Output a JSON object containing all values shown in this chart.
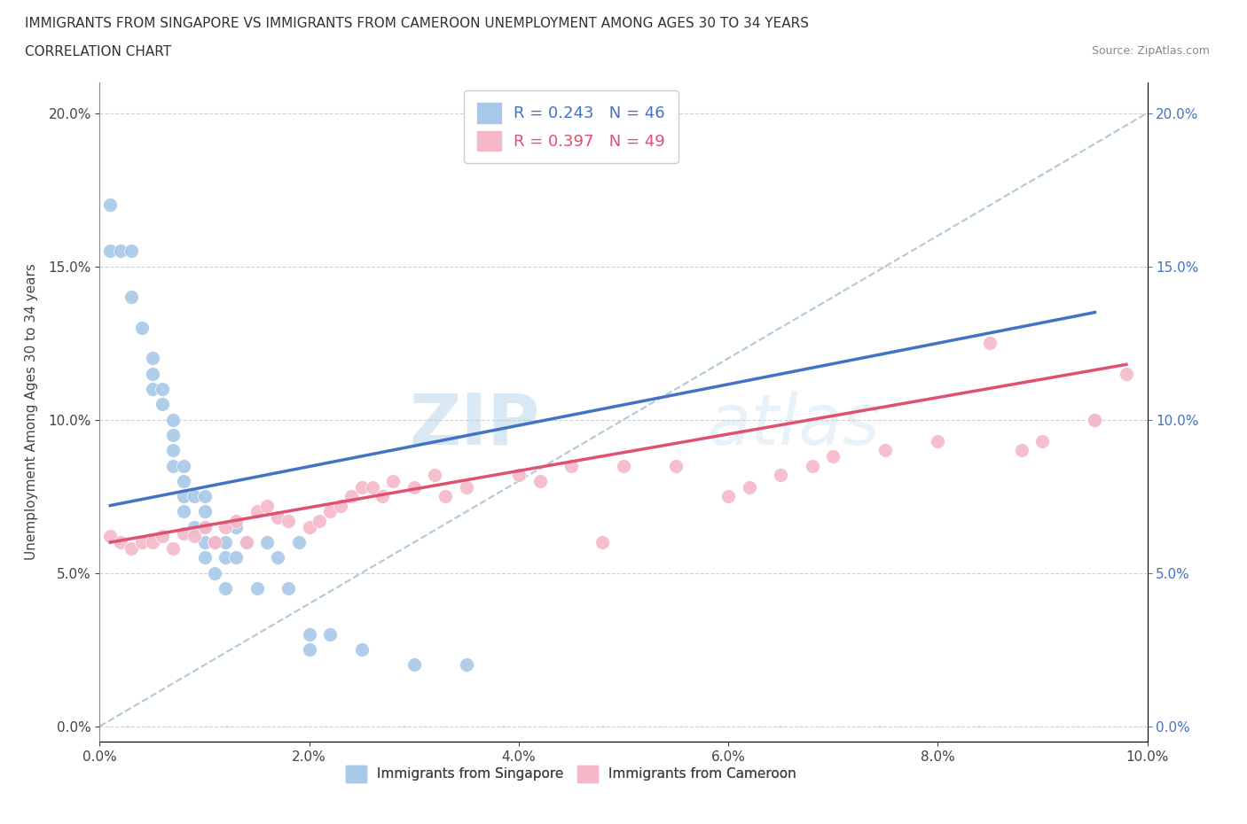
{
  "title_line1": "IMMIGRANTS FROM SINGAPORE VS IMMIGRANTS FROM CAMEROON UNEMPLOYMENT AMONG AGES 30 TO 34 YEARS",
  "title_line2": "CORRELATION CHART",
  "source": "Source: ZipAtlas.com",
  "ylabel": "Unemployment Among Ages 30 to 34 years",
  "watermark": "ZIPatlas",
  "xlim": [
    0.0,
    0.1
  ],
  "ylim": [
    -0.005,
    0.21
  ],
  "x_ticks": [
    0.0,
    0.02,
    0.04,
    0.06,
    0.08,
    0.1
  ],
  "y_ticks": [
    0.0,
    0.05,
    0.1,
    0.15,
    0.2
  ],
  "legend_singapore": "R = 0.243   N = 46",
  "legend_cameroon": "R = 0.397   N = 49",
  "legend_label_singapore": "Immigrants from Singapore",
  "legend_label_cameroon": "Immigrants from Cameroon",
  "color_singapore": "#a8c8e8",
  "color_cameroon": "#f5b8c8",
  "color_singapore_line": "#4472c4",
  "color_cameroon_line": "#e05070",
  "bg_color": "#ffffff",
  "grid_color": "#cccccc",
  "singapore_x": [
    0.001,
    0.001,
    0.002,
    0.003,
    0.003,
    0.004,
    0.005,
    0.005,
    0.005,
    0.006,
    0.006,
    0.007,
    0.007,
    0.007,
    0.007,
    0.008,
    0.008,
    0.008,
    0.008,
    0.009,
    0.009,
    0.01,
    0.01,
    0.01,
    0.01,
    0.01,
    0.011,
    0.011,
    0.012,
    0.012,
    0.012,
    0.013,
    0.013,
    0.014,
    0.015,
    0.016,
    0.017,
    0.018,
    0.019,
    0.02,
    0.02,
    0.022,
    0.025,
    0.03,
    0.035,
    0.095
  ],
  "singapore_y": [
    0.17,
    0.155,
    0.155,
    0.155,
    0.14,
    0.13,
    0.12,
    0.115,
    0.11,
    0.11,
    0.105,
    0.1,
    0.095,
    0.09,
    0.085,
    0.085,
    0.08,
    0.075,
    0.07,
    0.075,
    0.065,
    0.075,
    0.07,
    0.065,
    0.06,
    0.055,
    0.06,
    0.05,
    0.06,
    0.055,
    0.045,
    0.065,
    0.055,
    0.06,
    0.045,
    0.06,
    0.055,
    0.045,
    0.06,
    0.03,
    0.025,
    0.03,
    0.025,
    0.02,
    0.02,
    0.1
  ],
  "cameroon_x": [
    0.001,
    0.002,
    0.003,
    0.004,
    0.005,
    0.006,
    0.007,
    0.008,
    0.009,
    0.01,
    0.011,
    0.012,
    0.013,
    0.014,
    0.015,
    0.016,
    0.017,
    0.018,
    0.02,
    0.021,
    0.022,
    0.023,
    0.024,
    0.025,
    0.026,
    0.027,
    0.028,
    0.03,
    0.032,
    0.033,
    0.035,
    0.04,
    0.042,
    0.045,
    0.048,
    0.05,
    0.055,
    0.06,
    0.062,
    0.065,
    0.068,
    0.07,
    0.075,
    0.08,
    0.085,
    0.088,
    0.09,
    0.095,
    0.098
  ],
  "cameroon_y": [
    0.062,
    0.06,
    0.058,
    0.06,
    0.06,
    0.062,
    0.058,
    0.063,
    0.062,
    0.065,
    0.06,
    0.065,
    0.067,
    0.06,
    0.07,
    0.072,
    0.068,
    0.067,
    0.065,
    0.067,
    0.07,
    0.072,
    0.075,
    0.078,
    0.078,
    0.075,
    0.08,
    0.078,
    0.082,
    0.075,
    0.078,
    0.082,
    0.08,
    0.085,
    0.06,
    0.085,
    0.085,
    0.075,
    0.078,
    0.082,
    0.085,
    0.088,
    0.09,
    0.093,
    0.125,
    0.09,
    0.093,
    0.1,
    0.115
  ],
  "sg_trend_x": [
    0.001,
    0.095
  ],
  "sg_trend_y": [
    0.072,
    0.135
  ],
  "cm_trend_x": [
    0.001,
    0.098
  ],
  "cm_trend_y": [
    0.06,
    0.118
  ]
}
